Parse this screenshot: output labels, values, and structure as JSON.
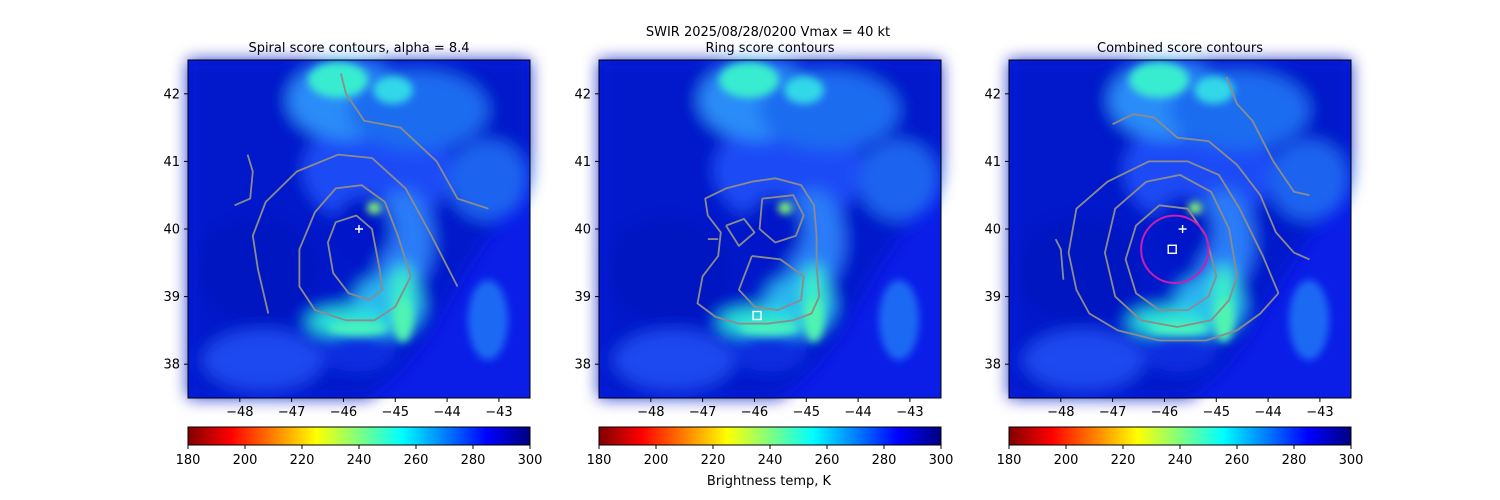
{
  "suptitle": "SWIR  2025/08/28/0200    Vmax = 40 kt",
  "colorbar_label": "Brightness temp, K",
  "colors": {
    "contour": "#8c8c8c",
    "marker": "#ffffff",
    "ring": "#c81eb4"
  },
  "chart_data": [
    {
      "type": "heatmap",
      "title": "Spiral score contours, alpha =  8.4",
      "xlim": [
        -49.0,
        -42.4
      ],
      "ylim": [
        37.5,
        42.5
      ],
      "xticks": [
        -48,
        -47,
        -46,
        -45,
        -44,
        -43
      ],
      "yticks": [
        38,
        39,
        40,
        41,
        42
      ],
      "colorbar": {
        "colormap": "jet_r",
        "range": [
          180,
          300
        ],
        "ticks": [
          180,
          200,
          220,
          240,
          260,
          280,
          300
        ]
      },
      "contours": [
        [
          [
            -45.35,
            39.6
          ],
          [
            -45.45,
            40.0
          ],
          [
            -45.75,
            40.2
          ],
          [
            -46.15,
            40.1
          ],
          [
            -46.3,
            39.8
          ],
          [
            -46.2,
            39.35
          ],
          [
            -45.9,
            39.05
          ],
          [
            -45.5,
            38.95
          ],
          [
            -45.25,
            39.1
          ],
          [
            -45.3,
            39.4
          ],
          [
            -45.35,
            39.6
          ]
        ],
        [
          [
            -44.7,
            39.3
          ],
          [
            -44.95,
            39.9
          ],
          [
            -45.2,
            40.4
          ],
          [
            -45.65,
            40.65
          ],
          [
            -46.15,
            40.6
          ],
          [
            -46.55,
            40.25
          ],
          [
            -46.85,
            39.7
          ],
          [
            -46.85,
            39.15
          ],
          [
            -46.55,
            38.8
          ],
          [
            -45.95,
            38.65
          ],
          [
            -45.4,
            38.65
          ],
          [
            -45.0,
            38.85
          ],
          [
            -44.7,
            39.3
          ]
        ],
        [
          [
            -43.8,
            39.15
          ],
          [
            -44.3,
            39.9
          ],
          [
            -44.8,
            40.6
          ],
          [
            -45.45,
            41.05
          ],
          [
            -46.1,
            41.1
          ],
          [
            -46.9,
            40.85
          ],
          [
            -47.5,
            40.4
          ],
          [
            -47.75,
            39.9
          ],
          [
            -47.65,
            39.4
          ],
          [
            -47.45,
            38.75
          ]
        ],
        [
          [
            -43.2,
            40.3
          ],
          [
            -43.8,
            40.45
          ],
          [
            -44.2,
            41.0
          ],
          [
            -44.9,
            41.5
          ],
          [
            -45.6,
            41.6
          ],
          [
            -45.95,
            42.0
          ],
          [
            -46.05,
            42.3
          ]
        ],
        [
          [
            -48.1,
            40.35
          ],
          [
            -47.8,
            40.45
          ],
          [
            -47.75,
            40.85
          ],
          [
            -47.85,
            41.1
          ]
        ]
      ],
      "center_marker": {
        "shape": "plus",
        "x": -45.7,
        "y": 40.0
      }
    },
    {
      "type": "heatmap",
      "title": "Ring score contours",
      "xlim": [
        -49.0,
        -42.4
      ],
      "ylim": [
        37.5,
        42.5
      ],
      "xticks": [
        -48,
        -47,
        -46,
        -45,
        -44,
        -43
      ],
      "yticks": [
        38,
        39,
        40,
        41,
        42
      ],
      "colorbar": {
        "colormap": "jet_r",
        "range": [
          180,
          300
        ],
        "ticks": [
          180,
          200,
          220,
          240,
          260,
          280,
          300
        ]
      },
      "contours": [
        [
          [
            -46.05,
            40.7
          ],
          [
            -45.6,
            40.75
          ],
          [
            -45.1,
            40.65
          ],
          [
            -44.85,
            40.35
          ],
          [
            -44.8,
            39.9
          ],
          [
            -44.8,
            39.45
          ],
          [
            -44.75,
            39.0
          ],
          [
            -44.9,
            38.75
          ],
          [
            -45.25,
            38.65
          ],
          [
            -45.75,
            38.6
          ],
          [
            -46.3,
            38.6
          ],
          [
            -46.75,
            38.7
          ],
          [
            -47.1,
            38.9
          ],
          [
            -47.0,
            39.3
          ],
          [
            -46.7,
            39.6
          ],
          [
            -46.65,
            39.95
          ],
          [
            -46.9,
            40.2
          ],
          [
            -46.95,
            40.45
          ],
          [
            -46.55,
            40.6
          ],
          [
            -46.05,
            40.7
          ]
        ],
        [
          [
            -45.85,
            40.45
          ],
          [
            -45.25,
            40.5
          ],
          [
            -45.05,
            40.2
          ],
          [
            -45.2,
            39.9
          ],
          [
            -45.6,
            39.8
          ],
          [
            -45.9,
            40.0
          ],
          [
            -45.85,
            40.45
          ]
        ],
        [
          [
            -46.05,
            39.6
          ],
          [
            -45.5,
            39.55
          ],
          [
            -45.05,
            39.3
          ],
          [
            -45.1,
            38.95
          ],
          [
            -45.55,
            38.8
          ],
          [
            -46.0,
            38.85
          ],
          [
            -46.3,
            39.1
          ],
          [
            -46.05,
            39.6
          ]
        ],
        [
          [
            -46.55,
            40.05
          ],
          [
            -46.2,
            40.15
          ],
          [
            -46.0,
            39.95
          ],
          [
            -46.3,
            39.75
          ],
          [
            -46.55,
            40.05
          ]
        ],
        [
          [
            -46.9,
            39.85
          ],
          [
            -46.7,
            39.85
          ]
        ]
      ],
      "center_marker": {
        "shape": "square",
        "x": -45.95,
        "y": 38.72
      }
    },
    {
      "type": "heatmap",
      "title": "Combined score contours",
      "xlim": [
        -49.0,
        -42.4
      ],
      "ylim": [
        37.5,
        42.5
      ],
      "xticks": [
        -48,
        -47,
        -46,
        -45,
        -44,
        -43
      ],
      "yticks": [
        38,
        39,
        40,
        41,
        42
      ],
      "colorbar": {
        "colormap": "jet_r",
        "range": [
          180,
          300
        ],
        "ticks": [
          180,
          200,
          220,
          240,
          260,
          280,
          300
        ]
      },
      "contours": [
        [
          [
            -45.0,
            39.3
          ],
          [
            -45.2,
            39.9
          ],
          [
            -45.55,
            40.3
          ],
          [
            -46.1,
            40.35
          ],
          [
            -46.55,
            40.05
          ],
          [
            -46.75,
            39.55
          ],
          [
            -46.55,
            39.05
          ],
          [
            -46.1,
            38.8
          ],
          [
            -45.55,
            38.8
          ],
          [
            -45.15,
            39.0
          ],
          [
            -45.0,
            39.3
          ]
        ],
        [
          [
            -44.6,
            39.3
          ],
          [
            -44.75,
            40.0
          ],
          [
            -45.1,
            40.55
          ],
          [
            -45.7,
            40.8
          ],
          [
            -46.35,
            40.7
          ],
          [
            -46.95,
            40.3
          ],
          [
            -47.15,
            39.65
          ],
          [
            -46.95,
            39.0
          ],
          [
            -46.45,
            38.65
          ],
          [
            -45.75,
            38.55
          ],
          [
            -45.1,
            38.65
          ],
          [
            -44.75,
            38.95
          ],
          [
            -44.6,
            39.3
          ]
        ],
        [
          [
            -43.8,
            39.05
          ],
          [
            -44.1,
            39.6
          ],
          [
            -44.55,
            40.3
          ],
          [
            -44.95,
            40.8
          ],
          [
            -45.55,
            41.0
          ],
          [
            -46.3,
            41.0
          ],
          [
            -47.1,
            40.7
          ],
          [
            -47.7,
            40.3
          ],
          [
            -47.85,
            39.65
          ],
          [
            -47.7,
            39.1
          ],
          [
            -47.45,
            38.75
          ],
          [
            -46.9,
            38.5
          ],
          [
            -46.1,
            38.35
          ],
          [
            -45.2,
            38.35
          ],
          [
            -44.6,
            38.5
          ],
          [
            -44.15,
            38.75
          ],
          [
            -43.8,
            39.05
          ]
        ],
        [
          [
            -48.1,
            39.85
          ],
          [
            -48.0,
            39.7
          ],
          [
            -47.95,
            39.25
          ]
        ],
        [
          [
            -43.2,
            39.55
          ],
          [
            -43.5,
            39.65
          ],
          [
            -43.85,
            39.95
          ],
          [
            -44.15,
            40.5
          ],
          [
            -44.6,
            40.95
          ],
          [
            -45.15,
            41.3
          ],
          [
            -45.75,
            41.35
          ],
          [
            -46.2,
            41.65
          ],
          [
            -46.6,
            41.7
          ],
          [
            -47.0,
            41.55
          ]
        ],
        [
          [
            -43.2,
            40.5
          ],
          [
            -43.5,
            40.55
          ],
          [
            -43.9,
            41.0
          ],
          [
            -44.3,
            41.6
          ],
          [
            -44.6,
            41.85
          ],
          [
            -44.7,
            42.05
          ],
          [
            -44.8,
            42.25
          ]
        ]
      ],
      "ring": {
        "x": -45.8,
        "y": 39.7,
        "radius_lon": 0.65
      },
      "center_marker": {
        "shape": "square",
        "x": -45.85,
        "y": 39.7
      },
      "second_marker": {
        "shape": "plus",
        "x": -45.65,
        "y": 40.0
      }
    }
  ]
}
